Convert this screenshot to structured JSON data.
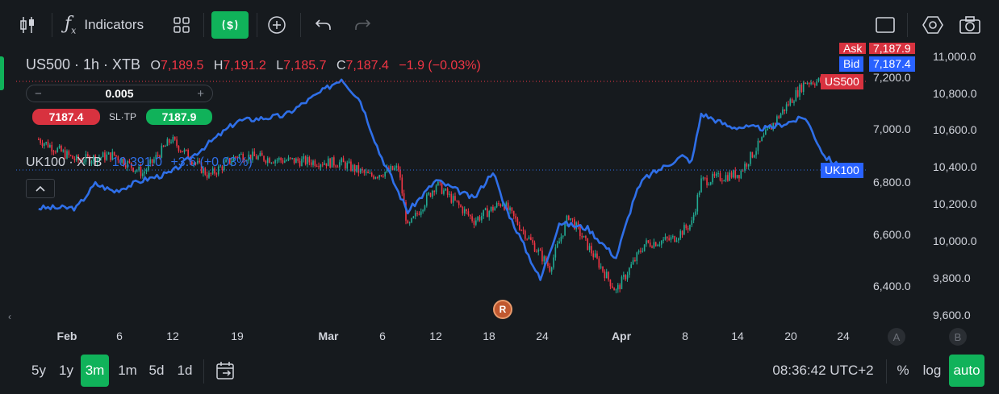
{
  "toolbar": {
    "indicators_label": "Indicators"
  },
  "legend": {
    "main": {
      "symbol": "US500 · 1h · XTB",
      "o_label": "O",
      "o_value": "7,189.5",
      "h_label": "H",
      "h_value": "7,191.2",
      "l_label": "L",
      "l_value": "7,185.7",
      "c_label": "C",
      "c_value": "7,187.4",
      "change": "−1.9 (−0.03%)"
    },
    "compare": {
      "symbol": "UK100 · XTB",
      "value": "10,391.0",
      "change": "+3.6 (+0.03%)"
    }
  },
  "trade_panel": {
    "minus": "−",
    "plus": "+",
    "quantity": "0.005",
    "sell_price": "7187.4",
    "sltp_label": "SL·TP",
    "buy_price": "7187.9"
  },
  "price_tags": {
    "ask_label": "Ask",
    "ask_value": "7,187.9",
    "bid_label": "Bid",
    "bid_value": "7,187.4",
    "us500_tag": "US500",
    "uk100_tag": "UK100"
  },
  "chart_data": [
    {
      "type": "candlestick",
      "name": "US500",
      "axis": "left-inner",
      "ylim": [
        6300,
        7370
      ],
      "y_ticks": [
        "7,200.0",
        "7,000.0",
        "6,800.0",
        "6,600.0",
        "6,400.0"
      ],
      "x_ticks": [
        "Feb",
        "6",
        "12",
        "19",
        "Mar",
        "6",
        "12",
        "18",
        "24",
        "Apr",
        "8",
        "14",
        "20",
        "24"
      ],
      "points": [
        {
          "x": "Jan 29",
          "y": 6960
        },
        {
          "x": "Feb 2",
          "y": 6880
        },
        {
          "x": "Feb 6",
          "y": 6900
        },
        {
          "x": "Feb 9",
          "y": 6830
        },
        {
          "x": "Feb 12",
          "y": 6960
        },
        {
          "x": "Feb 16",
          "y": 6820
        },
        {
          "x": "Feb 19",
          "y": 6900
        },
        {
          "x": "Feb 24",
          "y": 6880
        },
        {
          "x": "Mar 2",
          "y": 6870
        },
        {
          "x": "Mar 5",
          "y": 6820
        },
        {
          "x": "Mar 8",
          "y": 6850
        },
        {
          "x": "Mar 9",
          "y": 6620
        },
        {
          "x": "Mar 12",
          "y": 6790
        },
        {
          "x": "Mar 16",
          "y": 6650
        },
        {
          "x": "Mar 19",
          "y": 6720
        },
        {
          "x": "Mar 24",
          "y": 6470
        },
        {
          "x": "Mar 26",
          "y": 6670
        },
        {
          "x": "Mar 31",
          "y": 6380
        },
        {
          "x": "Apr 3",
          "y": 6560
        },
        {
          "x": "Apr 6",
          "y": 6580
        },
        {
          "x": "Apr 8",
          "y": 6640
        },
        {
          "x": "Apr 9",
          "y": 6800
        },
        {
          "x": "Apr 13",
          "y": 6830
        },
        {
          "x": "Apr 17",
          "y": 7040
        },
        {
          "x": "Apr 20",
          "y": 7180
        },
        {
          "x": "Apr 24",
          "y": 7187
        }
      ]
    },
    {
      "type": "line",
      "name": "UK100",
      "axis": "right",
      "ylim": [
        9560,
        11080
      ],
      "y_ticks": [
        "11,000.0",
        "10,800.0",
        "10,600.0",
        "10,400.0",
        "10,200.0",
        "10,000.0",
        "9,800.0",
        "9,600.0"
      ],
      "points": [
        {
          "x": "Jan 29",
          "y": 10180
        },
        {
          "x": "Feb 2",
          "y": 10180
        },
        {
          "x": "Feb 4",
          "y": 10310
        },
        {
          "x": "Feb 6",
          "y": 10270
        },
        {
          "x": "Feb 9",
          "y": 10330
        },
        {
          "x": "Feb 12",
          "y": 10370
        },
        {
          "x": "Feb 16",
          "y": 10530
        },
        {
          "x": "Feb 19",
          "y": 10650
        },
        {
          "x": "Feb 24",
          "y": 10680
        },
        {
          "x": "Feb 27",
          "y": 10780
        },
        {
          "x": "Mar 2",
          "y": 10880
        },
        {
          "x": "Mar 4",
          "y": 10760
        },
        {
          "x": "Mar 6",
          "y": 10480
        },
        {
          "x": "Mar 9",
          "y": 10160
        },
        {
          "x": "Mar 12",
          "y": 10330
        },
        {
          "x": "Mar 16",
          "y": 10230
        },
        {
          "x": "Mar 18",
          "y": 10380
        },
        {
          "x": "Mar 19",
          "y": 10220
        },
        {
          "x": "Mar 23",
          "y": 9790
        },
        {
          "x": "Mar 25",
          "y": 10100
        },
        {
          "x": "Mar 28",
          "y": 10070
        },
        {
          "x": "Mar 31",
          "y": 9910
        },
        {
          "x": "Apr 2",
          "y": 10250
        },
        {
          "x": "Apr 3",
          "y": 10340
        },
        {
          "x": "Apr 7",
          "y": 10460
        },
        {
          "x": "Apr 8",
          "y": 10430
        },
        {
          "x": "Apr 9",
          "y": 10690
        },
        {
          "x": "Apr 12",
          "y": 10620
        },
        {
          "x": "Apr 16",
          "y": 10610
        },
        {
          "x": "Apr 20",
          "y": 10670
        },
        {
          "x": "Apr 22",
          "y": 10460
        },
        {
          "x": "Apr 24",
          "y": 10391
        }
      ]
    }
  ],
  "axis_letters": {
    "a": "A",
    "b": "B"
  },
  "marker": "R",
  "bottombar": {
    "ranges": [
      "5y",
      "1y",
      "3m",
      "1m",
      "5d",
      "1d"
    ],
    "active_range": "3m",
    "time": "08:36:42 UTC+2",
    "percent": "%",
    "log": "log",
    "auto": "auto"
  },
  "colors": {
    "background": "#161a1e",
    "up": "#22ab94",
    "down": "#f23645",
    "compare_line": "#2f6fe8",
    "accent": "#10b25a"
  }
}
